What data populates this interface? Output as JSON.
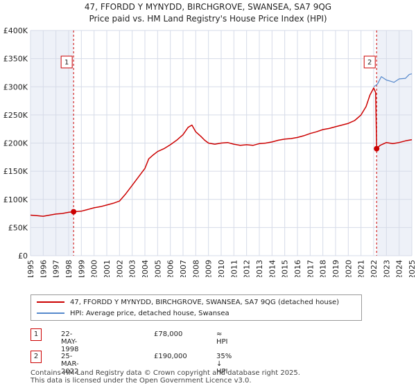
{
  "chart_data": {
    "type": "line",
    "title": "47, FFORDD Y MYNYDD, BIRCHGROVE, SWANSEA, SA7 9QG",
    "subtitle": "Price paid vs. HM Land Registry's House Price Index (HPI)",
    "xlim": [
      1995,
      2025
    ],
    "ylim": [
      0,
      400000
    ],
    "x_ticks": [
      "1995",
      "1996",
      "1997",
      "1998",
      "1999",
      "2000",
      "2001",
      "2002",
      "2003",
      "2004",
      "2005",
      "2006",
      "2007",
      "2008",
      "2009",
      "2010",
      "2011",
      "2012",
      "2013",
      "2014",
      "2015",
      "2016",
      "2017",
      "2018",
      "2019",
      "2020",
      "2021",
      "2022",
      "2023",
      "2024",
      "2025"
    ],
    "y_ticks": [
      {
        "value": 0,
        "label": "£0"
      },
      {
        "value": 50000,
        "label": "£50K"
      },
      {
        "value": 100000,
        "label": "£100K"
      },
      {
        "value": 150000,
        "label": "£150K"
      },
      {
        "value": 200000,
        "label": "£200K"
      },
      {
        "value": 250000,
        "label": "£250K"
      },
      {
        "value": 300000,
        "label": "£300K"
      },
      {
        "value": 350000,
        "label": "£350K"
      },
      {
        "value": 400000,
        "label": "£400K"
      }
    ],
    "grid": true,
    "shaded_period": [
      1998.39,
      2022.23
    ],
    "series": [
      {
        "name": "47, FFORDD Y MYNYDD, BIRCHGROVE, SWANSEA, SA7 9QG (detached house)",
        "color": "#cc0000",
        "points": [
          [
            1995.0,
            72000
          ],
          [
            1995.5,
            71000
          ],
          [
            1996.0,
            70000
          ],
          [
            1996.5,
            72000
          ],
          [
            1997.0,
            74000
          ],
          [
            1997.5,
            75000
          ],
          [
            1998.0,
            77000
          ],
          [
            1998.39,
            78000
          ],
          [
            1999.0,
            79000
          ],
          [
            1999.5,
            82000
          ],
          [
            2000.0,
            85000
          ],
          [
            2000.5,
            87000
          ],
          [
            2001.0,
            90000
          ],
          [
            2001.5,
            93000
          ],
          [
            2002.0,
            97000
          ],
          [
            2002.5,
            110000
          ],
          [
            2003.0,
            125000
          ],
          [
            2003.5,
            140000
          ],
          [
            2004.0,
            155000
          ],
          [
            2004.3,
            172000
          ],
          [
            2004.6,
            178000
          ],
          [
            2005.0,
            185000
          ],
          [
            2005.5,
            190000
          ],
          [
            2006.0,
            197000
          ],
          [
            2006.5,
            205000
          ],
          [
            2007.0,
            215000
          ],
          [
            2007.4,
            228000
          ],
          [
            2007.7,
            232000
          ],
          [
            2008.0,
            220000
          ],
          [
            2008.4,
            212000
          ],
          [
            2008.7,
            205000
          ],
          [
            2009.0,
            200000
          ],
          [
            2009.5,
            198000
          ],
          [
            2010.0,
            200000
          ],
          [
            2010.5,
            201000
          ],
          [
            2011.0,
            198000
          ],
          [
            2011.5,
            196000
          ],
          [
            2012.0,
            197000
          ],
          [
            2012.5,
            196000
          ],
          [
            2013.0,
            199000
          ],
          [
            2013.5,
            200000
          ],
          [
            2014.0,
            202000
          ],
          [
            2014.5,
            205000
          ],
          [
            2015.0,
            207000
          ],
          [
            2015.5,
            208000
          ],
          [
            2016.0,
            210000
          ],
          [
            2016.5,
            213000
          ],
          [
            2017.0,
            217000
          ],
          [
            2017.5,
            220000
          ],
          [
            2018.0,
            224000
          ],
          [
            2018.5,
            226000
          ],
          [
            2019.0,
            229000
          ],
          [
            2019.5,
            232000
          ],
          [
            2020.0,
            235000
          ],
          [
            2020.5,
            240000
          ],
          [
            2021.0,
            250000
          ],
          [
            2021.4,
            265000
          ],
          [
            2021.7,
            285000
          ],
          [
            2022.0,
            298000
          ],
          [
            2022.15,
            290000
          ],
          [
            2022.23,
            190000
          ],
          [
            2022.5,
            196000
          ],
          [
            2023.0,
            201000
          ],
          [
            2023.5,
            199000
          ],
          [
            2024.0,
            201000
          ],
          [
            2024.5,
            204000
          ],
          [
            2025.0,
            206000
          ]
        ]
      },
      {
        "name": "HPI: Average price, detached house, Swansea",
        "color": "#5588cc",
        "points": [
          [
            2022.0,
            300000
          ],
          [
            2022.3,
            305000
          ],
          [
            2022.6,
            318000
          ],
          [
            2023.0,
            312000
          ],
          [
            2023.3,
            310000
          ],
          [
            2023.6,
            308000
          ],
          [
            2024.0,
            314000
          ],
          [
            2024.5,
            315000
          ],
          [
            2024.8,
            322000
          ],
          [
            2025.0,
            323000
          ]
        ]
      }
    ],
    "markers": [
      {
        "label": "1",
        "x": 1998.39,
        "y": 78000
      },
      {
        "label": "2",
        "x": 2022.23,
        "y": 190000
      }
    ]
  },
  "legend": {
    "entries": [
      {
        "label": "47, FFORDD Y MYNYDD, BIRCHGROVE, SWANSEA, SA7 9QG (detached house)",
        "color": "#cc0000"
      },
      {
        "label": "HPI: Average price, detached house, Swansea",
        "color": "#5588cc"
      }
    ]
  },
  "transactions": [
    {
      "num": "1",
      "date": "22-MAY-1998",
      "price": "£78,000",
      "hpi": "≈ HPI"
    },
    {
      "num": "2",
      "date": "25-MAR-2022",
      "price": "£190,000",
      "hpi": "35% ↓ HPI"
    }
  ],
  "footer": {
    "line1": "Contains HM Land Registry data © Crown copyright and database right 2025.",
    "line2": "This data is licensed under the Open Government Licence v3.0."
  }
}
